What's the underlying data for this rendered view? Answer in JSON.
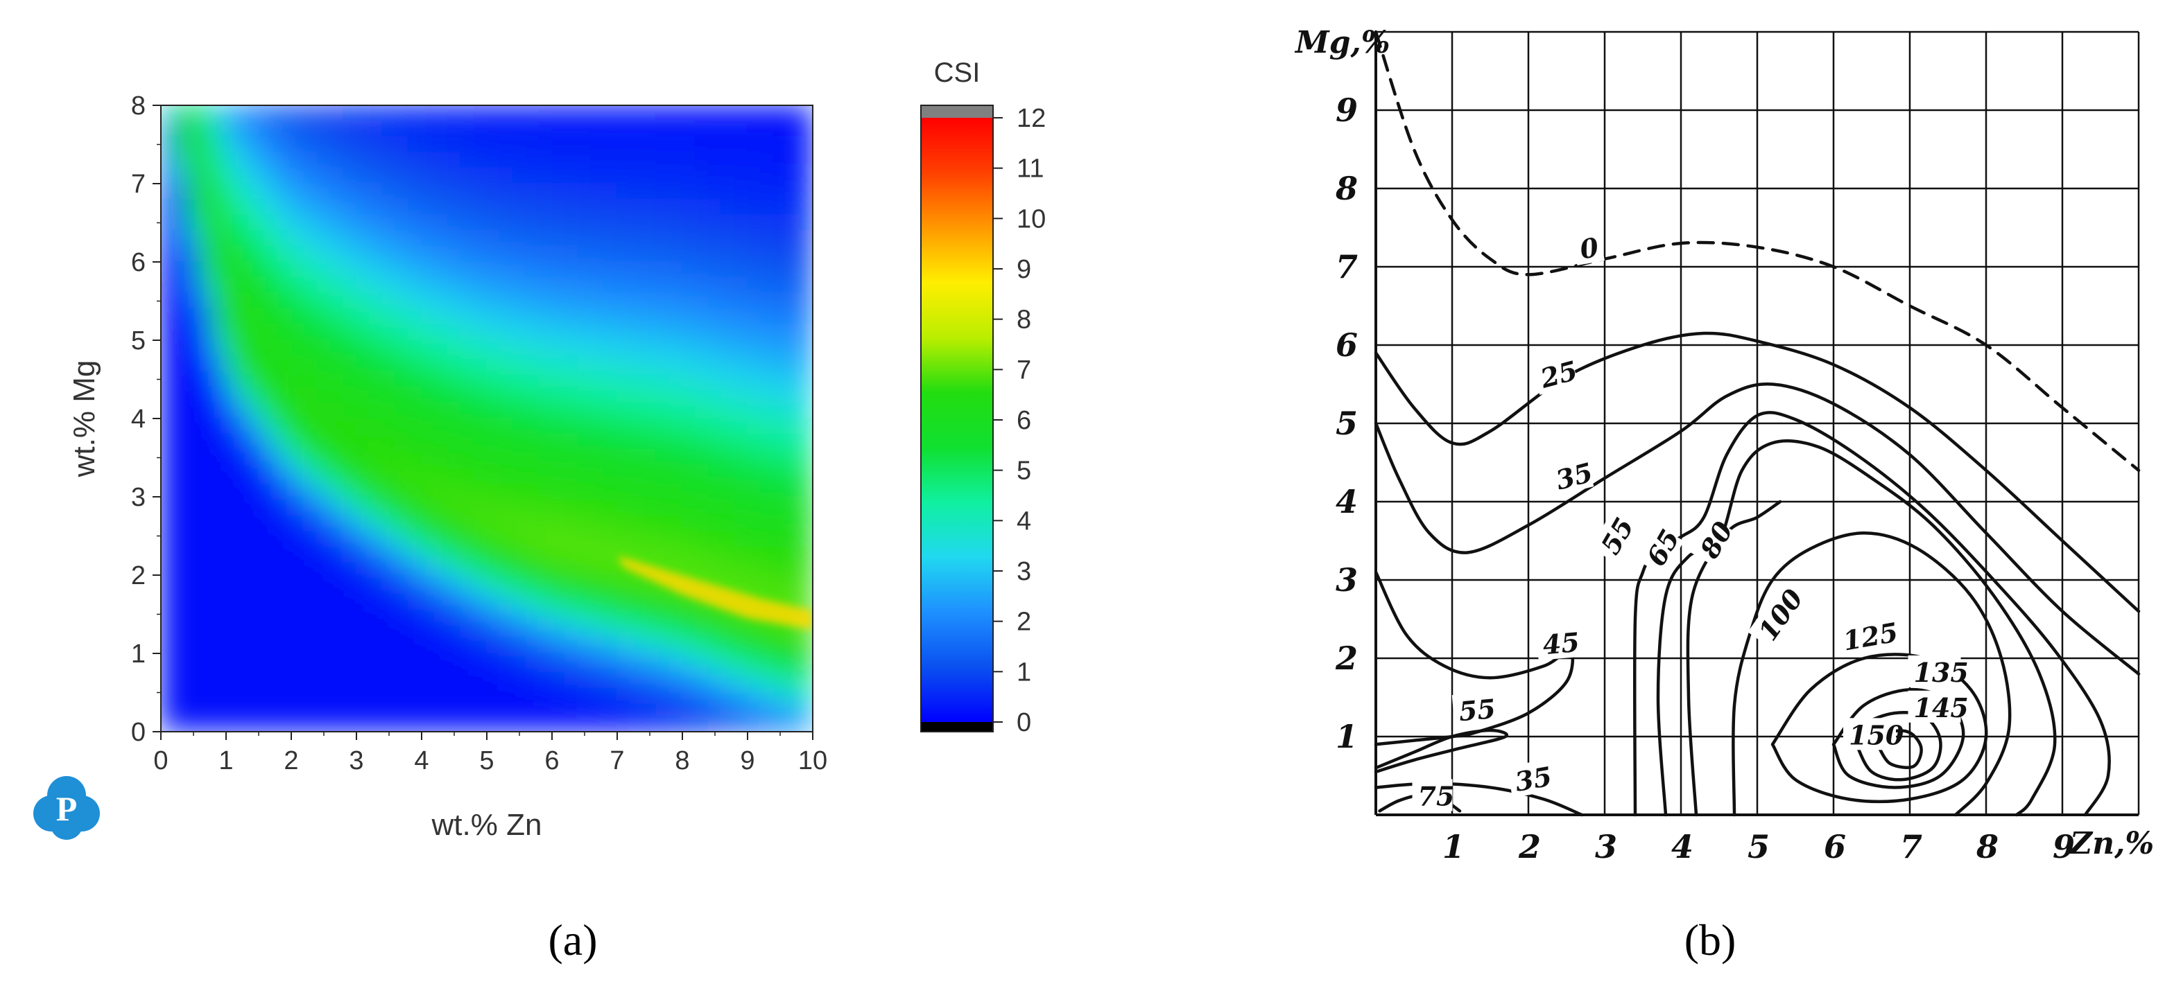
{
  "chart_data": [
    {
      "type": "heatmap",
      "panel_label": "(a)",
      "xlabel": "wt.% Zn",
      "ylabel": "wt.% Mg",
      "xlim": [
        0,
        10
      ],
      "ylim": [
        0,
        8
      ],
      "x_ticks": [
        "0",
        "1",
        "2",
        "3",
        "4",
        "5",
        "6",
        "7",
        "8",
        "9",
        "10"
      ],
      "y_ticks": [
        "0",
        "1",
        "2",
        "3",
        "4",
        "5",
        "6",
        "7",
        "8"
      ],
      "colorbar": {
        "title": "CSI",
        "range": [
          0,
          12
        ],
        "ticks": [
          "0",
          "1",
          "2",
          "3",
          "4",
          "5",
          "6",
          "7",
          "8",
          "9",
          "10",
          "11",
          "12"
        ],
        "colors": [
          "#0000ff",
          "#0a50f0",
          "#1e90ff",
          "#20d8f0",
          "#10f0a0",
          "#10e030",
          "#22dd10",
          "#bbee00",
          "#ffee00",
          "#ff9900",
          "#ff4000",
          "#ff0000"
        ],
        "under_color": "#000000",
        "over_color": "#808080"
      },
      "ridge_max": [
        {
          "x": 0.5,
          "y": 7.0
        },
        {
          "x": 1,
          "y": 5.2
        },
        {
          "x": 2,
          "y": 4.1
        },
        {
          "x": 3,
          "y": 3.5
        },
        {
          "x": 4,
          "y": 3.0
        },
        {
          "x": 5,
          "y": 2.6
        },
        {
          "x": 6,
          "y": 2.3
        },
        {
          "x": 7,
          "y": 2.1
        },
        {
          "x": 8,
          "y": 1.9
        },
        {
          "x": 9,
          "y": 1.6
        },
        {
          "x": 10,
          "y": 1.35
        }
      ],
      "peak_region": {
        "x": [
          7,
          10
        ],
        "y": [
          1.3,
          2.3
        ],
        "value": 9
      }
    },
    {
      "type": "line",
      "panel_label": "(b)",
      "xlabel": "Zn,%",
      "ylabel": "Mg,%",
      "xlim": [
        0,
        10
      ],
      "ylim": [
        0,
        10
      ],
      "x_ticks": [
        "1",
        "2",
        "3",
        "4",
        "5",
        "6",
        "7",
        "8",
        "9"
      ],
      "y_ticks": [
        "1",
        "2",
        "3",
        "4",
        "5",
        "6",
        "7",
        "8",
        "9"
      ],
      "series": [
        {
          "name": "0",
          "style": "dashed",
          "points": [
            [
              0,
              10
            ],
            [
              0.5,
              8.5
            ],
            [
              1,
              7.6
            ],
            [
              1.5,
              7.1
            ],
            [
              2,
              6.9
            ],
            [
              3,
              7.1
            ],
            [
              4,
              7.3
            ],
            [
              5,
              7.25
            ],
            [
              6,
              7.0
            ],
            [
              7,
              6.5
            ],
            [
              8,
              6.0
            ],
            [
              9,
              5.2
            ],
            [
              10,
              4.4
            ]
          ]
        },
        {
          "name": "25",
          "style": "solid",
          "points": [
            [
              0,
              5.9
            ],
            [
              0.5,
              5.2
            ],
            [
              1,
              4.75
            ],
            [
              1.5,
              4.9
            ],
            [
              2.5,
              5.6
            ],
            [
              3.5,
              6.0
            ],
            [
              4.3,
              6.15
            ],
            [
              5,
              6.05
            ],
            [
              6,
              5.75
            ],
            [
              7,
              5.2
            ],
            [
              8,
              4.4
            ],
            [
              9,
              3.5
            ],
            [
              10,
              2.6
            ]
          ]
        },
        {
          "name": "35",
          "style": "solid",
          "points": [
            [
              0,
              5.0
            ],
            [
              0.3,
              4.3
            ],
            [
              0.7,
              3.6
            ],
            [
              1.2,
              3.35
            ],
            [
              2,
              3.7
            ],
            [
              3,
              4.3
            ],
            [
              4,
              4.9
            ],
            [
              4.6,
              5.35
            ],
            [
              5.2,
              5.5
            ],
            [
              6,
              5.25
            ],
            [
              7,
              4.6
            ],
            [
              8,
              3.6
            ],
            [
              9,
              2.6
            ],
            [
              10,
              1.8
            ]
          ]
        },
        {
          "name": "45",
          "style": "solid",
          "points": [
            [
              0,
              3.1
            ],
            [
              0.4,
              2.3
            ],
            [
              0.9,
              1.9
            ],
            [
              1.5,
              1.75
            ],
            [
              2.2,
              1.9
            ],
            [
              2.55,
              2.1
            ],
            [
              2.5,
              1.7
            ],
            [
              2,
              1.3
            ],
            [
              1.3,
              1.05
            ],
            [
              1,
              1.0
            ],
            [
              0.5,
              0.95
            ],
            [
              0,
              0.9
            ]
          ]
        },
        {
          "name": "55",
          "style": "solid",
          "points": [
            [
              0,
              0.6
            ],
            [
              0.5,
              0.8
            ],
            [
              1,
              1.0
            ],
            [
              1.5,
              1.08
            ],
            [
              1.7,
              1.0
            ],
            [
              1.1,
              0.85
            ],
            [
              0.5,
              0.7
            ],
            [
              0,
              0.55
            ]
          ]
        },
        {
          "name": "75",
          "style": "solid",
          "points": [
            [
              0.05,
              0.05
            ],
            [
              0.3,
              0.18
            ],
            [
              0.6,
              0.25
            ],
            [
              0.9,
              0.18
            ],
            [
              1.1,
              0.05
            ]
          ]
        },
        {
          "name": "35",
          "style": "solid",
          "points": [
            [
              0,
              0.35
            ],
            [
              0.7,
              0.4
            ],
            [
              1.5,
              0.35
            ],
            [
              2.2,
              0.2
            ],
            [
              2.7,
              0.0
            ]
          ]
        },
        {
          "name": "55",
          "style": "solid",
          "points": [
            [
              3.4,
              0.0
            ],
            [
              3.4,
              2.5
            ],
            [
              3.5,
              3.1
            ],
            [
              3.7,
              3.4
            ],
            [
              4.0,
              3.55
            ],
            [
              4.3,
              3.8
            ],
            [
              4.6,
              4.6
            ],
            [
              5.0,
              5.1
            ],
            [
              5.5,
              5.05
            ],
            [
              6.3,
              4.6
            ],
            [
              7.2,
              3.9
            ],
            [
              8.1,
              3.0
            ],
            [
              8.9,
              2.1
            ],
            [
              9.5,
              1.2
            ],
            [
              9.6,
              0.5
            ],
            [
              9.3,
              0.0
            ]
          ]
        },
        {
          "name": "65",
          "style": "solid",
          "points": [
            [
              3.8,
              0.0
            ],
            [
              3.7,
              1.5
            ],
            [
              3.8,
              2.8
            ],
            [
              4.1,
              3.3
            ],
            [
              4.5,
              3.5
            ],
            [
              4.8,
              4.4
            ],
            [
              5.2,
              4.75
            ],
            [
              5.8,
              4.7
            ],
            [
              6.5,
              4.3
            ],
            [
              7.3,
              3.7
            ],
            [
              8.1,
              2.8
            ],
            [
              8.7,
              1.8
            ],
            [
              8.9,
              0.9
            ],
            [
              8.6,
              0.2
            ],
            [
              8.4,
              0.0
            ]
          ]
        },
        {
          "name": "80",
          "style": "solid",
          "points": [
            [
              4.2,
              0.0
            ],
            [
              4.1,
              1.5
            ],
            [
              4.15,
              2.8
            ],
            [
              4.6,
              3.6
            ],
            [
              5,
              3.8
            ],
            [
              5.3,
              4.0
            ]
          ]
        },
        {
          "name": "100",
          "style": "solid",
          "points": [
            [
              4.7,
              0.0
            ],
            [
              4.7,
              1.4
            ],
            [
              4.9,
              2.3
            ],
            [
              5.2,
              3.0
            ],
            [
              5.7,
              3.4
            ],
            [
              6.4,
              3.6
            ],
            [
              7.1,
              3.4
            ],
            [
              7.8,
              2.8
            ],
            [
              8.2,
              2.0
            ],
            [
              8.3,
              1.1
            ],
            [
              8.0,
              0.4
            ],
            [
              7.6,
              0.0
            ]
          ]
        },
        {
          "name": "125",
          "style": "solid",
          "points": [
            [
              5.2,
              0.9
            ],
            [
              5.5,
              0.45
            ],
            [
              6.2,
              0.2
            ],
            [
              7.0,
              0.2
            ],
            [
              7.7,
              0.45
            ],
            [
              8.0,
              1.0
            ],
            [
              7.8,
              1.6
            ],
            [
              7.2,
              2.0
            ],
            [
              6.4,
              2.0
            ],
            [
              5.7,
              1.6
            ],
            [
              5.2,
              0.9
            ]
          ]
        },
        {
          "name": "135",
          "style": "solid",
          "points": [
            [
              6.0,
              0.9
            ],
            [
              6.2,
              0.5
            ],
            [
              6.8,
              0.35
            ],
            [
              7.4,
              0.5
            ],
            [
              7.7,
              1.0
            ],
            [
              7.5,
              1.45
            ],
            [
              7.0,
              1.6
            ],
            [
              6.4,
              1.4
            ],
            [
              6.0,
              0.9
            ]
          ]
        },
        {
          "name": "145",
          "style": "solid",
          "points": [
            [
              6.3,
              0.9
            ],
            [
              6.5,
              0.55
            ],
            [
              6.9,
              0.45
            ],
            [
              7.3,
              0.6
            ],
            [
              7.4,
              0.95
            ],
            [
              7.2,
              1.25
            ],
            [
              6.8,
              1.3
            ],
            [
              6.4,
              1.15
            ],
            [
              6.3,
              0.9
            ]
          ]
        },
        {
          "name": "150",
          "style": "solid",
          "points": [
            [
              6.6,
              0.85
            ],
            [
              6.75,
              0.65
            ],
            [
              7.05,
              0.62
            ],
            [
              7.15,
              0.85
            ],
            [
              7.0,
              1.05
            ],
            [
              6.75,
              1.05
            ],
            [
              6.6,
              0.85
            ]
          ]
        }
      ]
    }
  ],
  "logo": {
    "letter": "P"
  }
}
